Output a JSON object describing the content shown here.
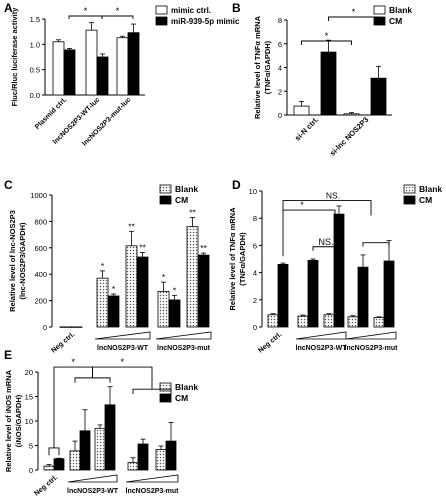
{
  "chart_data": [
    {
      "panel": "A",
      "type": "bar",
      "title": "",
      "ylabel": "Fluc/Rluc luciferase activity",
      "xlabel": "",
      "ylim": [
        0,
        1.5
      ],
      "yticks": [
        "0.0",
        "0.5",
        "1.0",
        "1.5"
      ],
      "categories": [
        "Plasmid ctrl.",
        "lncNOS2P3-WT-luc",
        "lncNOS2P3-mut-luc"
      ],
      "series": [
        {
          "name": "mimic ctrl.",
          "values": [
            1.05,
            1.28,
            1.13
          ],
          "errors": [
            0.04,
            0.15,
            0.03
          ],
          "color": "#ffffff"
        },
        {
          "name": "miR-939-5p mimic",
          "values": [
            0.89,
            0.75,
            1.23
          ],
          "errors": [
            0.03,
            0.06,
            0.17
          ],
          "color": "#000000"
        }
      ],
      "significance": [
        "*",
        "*"
      ],
      "legend": "top-right"
    },
    {
      "panel": "B",
      "type": "bar",
      "title": "",
      "ylabel": "Relative level of TNFα mRNA (TNFα/GAPDH)",
      "xlabel": "",
      "ylim": [
        0,
        8
      ],
      "yticks": [
        "0",
        "2",
        "4",
        "6",
        "8"
      ],
      "categories": [
        "si-N ctrl.",
        "si-lnc NOS2P3"
      ],
      "series": [
        {
          "name": "Blank",
          "values": [
            0.75,
            0.1
          ],
          "errors": [
            0.4,
            0.1
          ],
          "color": "#ffffff"
        },
        {
          "name": "CM",
          "values": [
            5.3,
            3.1
          ],
          "errors": [
            1.0,
            1.0
          ],
          "color": "#000000"
        }
      ],
      "significance": [
        "*",
        "*"
      ],
      "legend": "top-right"
    },
    {
      "panel": "C",
      "type": "bar",
      "title": "",
      "ylabel": "Relative level of lnc-NOS2P3 (lnc-NOS2P3/GAPDH)",
      "xlabel": "",
      "ylim": [
        0,
        1000
      ],
      "yticks": [
        "0",
        "200",
        "400",
        "600",
        "800",
        "1000"
      ],
      "groups": [
        "Neg ctrl.",
        "lncNOS2P3-WT",
        "lncNOS2P3-mut"
      ],
      "series": [
        {
          "name": "Blank",
          "values": [
            1,
            370,
            615,
            270,
            760
          ],
          "errors": [
            0,
            55,
            110,
            70,
            70
          ],
          "color": "#dddddd"
        },
        {
          "name": "CM",
          "values": [
            1,
            235,
            530,
            205,
            545
          ],
          "errors": [
            0,
            15,
            35,
            35,
            15
          ],
          "color": "#000000"
        }
      ],
      "stars": [
        "*",
        "*",
        "**",
        "**",
        "*",
        "*",
        "**",
        "**"
      ],
      "legend": "top-right"
    },
    {
      "panel": "D",
      "type": "bar",
      "title": "",
      "ylabel": "Relative level of TNFα mRNA (TNFα/GAPDH)",
      "xlabel": "",
      "ylim": [
        0,
        10
      ],
      "yticks": [
        "0",
        "2",
        "4",
        "6",
        "8",
        "10"
      ],
      "groups": [
        "Neg ctrl.",
        "lncNOS2P3-WT",
        "lncNOS2P3-mut"
      ],
      "series": [
        {
          "name": "Blank",
          "values": [
            0.9,
            0.8,
            0.9,
            0.75,
            0.7
          ],
          "errors": [
            0.08,
            0.08,
            0.08,
            0.08,
            0.05
          ],
          "color": "#dddddd"
        },
        {
          "name": "CM",
          "values": [
            4.6,
            4.9,
            8.3,
            4.4,
            4.85
          ],
          "errors": [
            0.1,
            0.1,
            0.6,
            0.9,
            1.5
          ],
          "color": "#000000"
        }
      ],
      "significance": [
        "*",
        "NS.",
        "NS."
      ],
      "legend": "top-right"
    },
    {
      "panel": "E",
      "type": "bar",
      "title": "",
      "ylabel": "Relative level of iNOS mRNA (iNOS/GAPDH)",
      "xlabel": "",
      "ylim": [
        0,
        20
      ],
      "yticks": [
        "0",
        "5",
        "10",
        "15",
        "20"
      ],
      "groups": [
        "Neg ctrl.",
        "lncNOS2P3-WT",
        "lncNOS2P3-mut"
      ],
      "series": [
        {
          "name": "Blank",
          "values": [
            0.8,
            3.9,
            8.5,
            1.5,
            4.2
          ],
          "errors": [
            0.3,
            2.0,
            0.7,
            1.0,
            0.7
          ],
          "color": "#dddddd"
        },
        {
          "name": "CM",
          "values": [
            2.3,
            8.0,
            13.3,
            5.3,
            5.9
          ],
          "errors": [
            0.1,
            4.3,
            3.7,
            1.0,
            3.8
          ],
          "color": "#000000"
        }
      ],
      "significance": [
        "*",
        "*"
      ],
      "legend": "top-right"
    }
  ]
}
